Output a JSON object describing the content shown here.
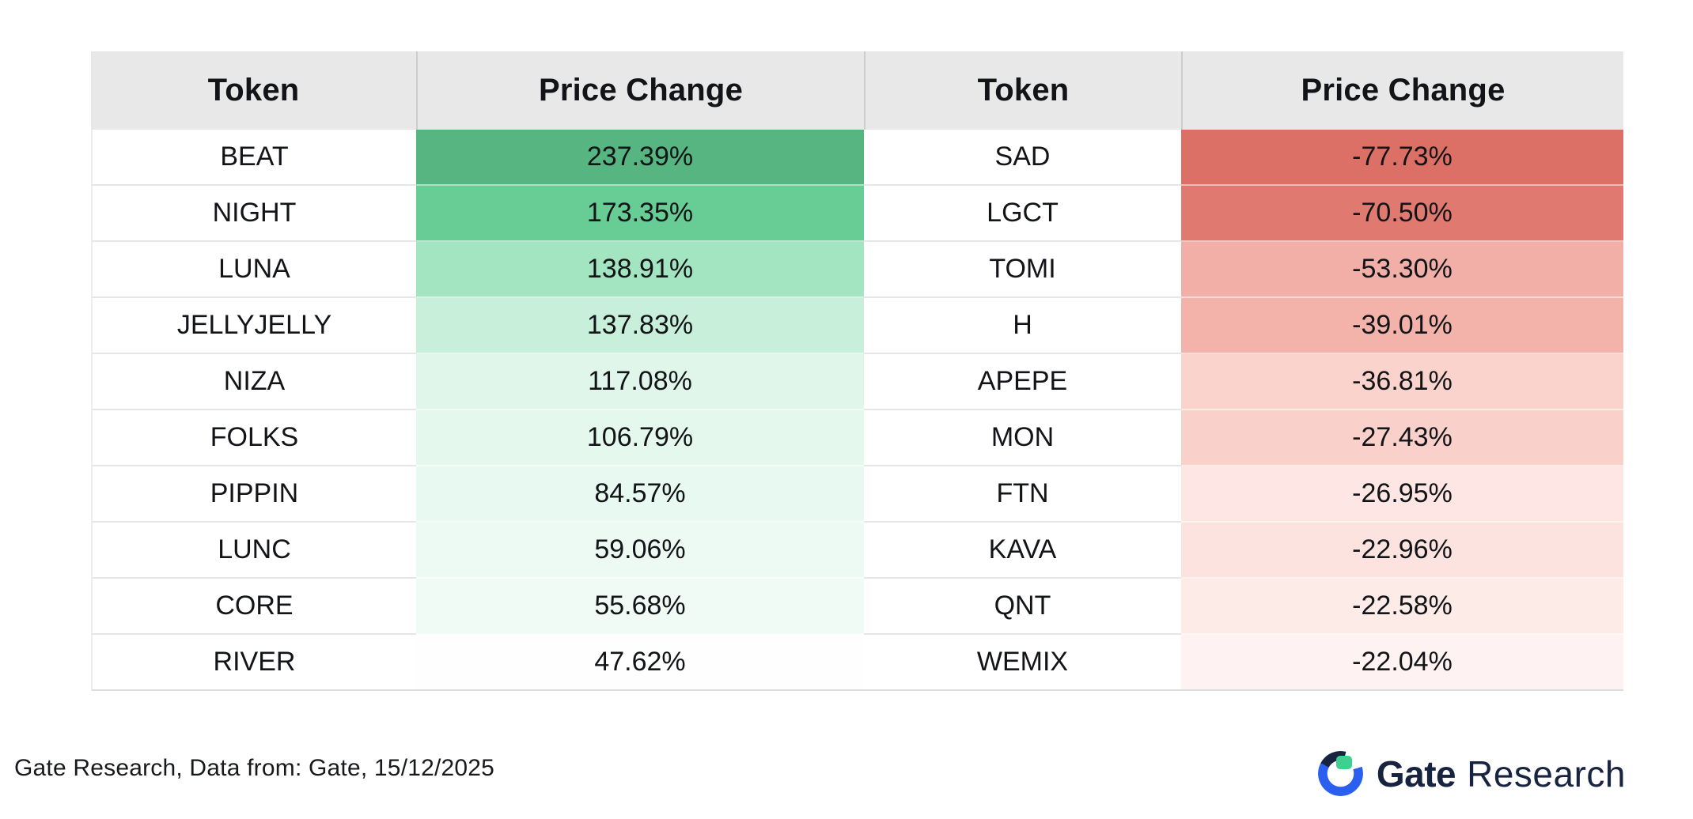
{
  "table": {
    "header_bg": "#e8e8e8",
    "headers": [
      {
        "label": "Token"
      },
      {
        "label": "Price Change"
      },
      {
        "label": "Token"
      },
      {
        "label": "Price Change"
      }
    ],
    "rows": [
      {
        "gainer_token": "BEAT",
        "gainer_change": "237.39%",
        "gainer_bg": "#56b581",
        "loser_token": "SAD",
        "loser_change": "-77.73%",
        "loser_bg": "#dd7066"
      },
      {
        "gainer_token": "NIGHT",
        "gainer_change": "173.35%",
        "gainer_bg": "#67cd95",
        "loser_token": "LGCT",
        "loser_change": "-70.50%",
        "loser_bg": "#e0796f"
      },
      {
        "gainer_token": "LUNA",
        "gainer_change": "138.91%",
        "gainer_bg": "#a3e4c1",
        "loser_token": "TOMI",
        "loser_change": "-53.30%",
        "loser_bg": "#f2afa7"
      },
      {
        "gainer_token": "JELLYJELLY",
        "gainer_change": "137.83%",
        "gainer_bg": "#c8efda",
        "loser_token": "H",
        "loser_change": "-39.01%",
        "loser_bg": "#f3b3ab"
      },
      {
        "gainer_token": "NIZA",
        "gainer_change": "117.08%",
        "gainer_bg": "#e1f6ea",
        "loser_token": "APEPE",
        "loser_change": "-36.81%",
        "loser_bg": "#fad3cd"
      },
      {
        "gainer_token": "FOLKS",
        "gainer_change": "106.79%",
        "gainer_bg": "#e5f8ed",
        "loser_token": "MON",
        "loser_change": "-27.43%",
        "loser_bg": "#f9d0ca"
      },
      {
        "gainer_token": "PIPPIN",
        "gainer_change": "84.57%",
        "gainer_bg": "#e7f9f0",
        "loser_token": "FTN",
        "loser_change": "-26.95%",
        "loser_bg": "#fde6e3"
      },
      {
        "gainer_token": "LUNC",
        "gainer_change": "59.06%",
        "gainer_bg": "#edfaf3",
        "loser_token": "KAVA",
        "loser_change": "-22.96%",
        "loser_bg": "#fce3df"
      },
      {
        "gainer_token": "CORE",
        "gainer_change": "55.68%",
        "gainer_bg": "#f1fbf6",
        "loser_token": "QNT",
        "loser_change": "-22.58%",
        "loser_bg": "#fdebe8"
      },
      {
        "gainer_token": "RIVER",
        "gainer_change": "47.62%",
        "gainer_bg": "#fdfefd",
        "loser_token": "WEMIX",
        "loser_change": "-22.04%",
        "loser_bg": "#fef3f2"
      }
    ]
  },
  "footer": {
    "source_text": "Gate Research, Data from: Gate, 15/12/2025",
    "logo": {
      "brand": "Gate",
      "suffix": "Research",
      "blue": "#2b5ff0",
      "navy": "#18243f",
      "green": "#3fcf8e"
    }
  },
  "chart_data": {
    "type": "table",
    "columns": [
      "Token",
      "Price Change",
      "Token",
      "Price Change"
    ],
    "gainers": [
      {
        "token": "BEAT",
        "change_pct": 237.39
      },
      {
        "token": "NIGHT",
        "change_pct": 173.35
      },
      {
        "token": "LUNA",
        "change_pct": 138.91
      },
      {
        "token": "JELLYJELLY",
        "change_pct": 137.83
      },
      {
        "token": "NIZA",
        "change_pct": 117.08
      },
      {
        "token": "FOLKS",
        "change_pct": 106.79
      },
      {
        "token": "PIPPIN",
        "change_pct": 84.57
      },
      {
        "token": "LUNC",
        "change_pct": 59.06
      },
      {
        "token": "CORE",
        "change_pct": 55.68
      },
      {
        "token": "RIVER",
        "change_pct": 47.62
      }
    ],
    "losers": [
      {
        "token": "SAD",
        "change_pct": -77.73
      },
      {
        "token": "LGCT",
        "change_pct": -70.5
      },
      {
        "token": "TOMI",
        "change_pct": -53.3
      },
      {
        "token": "H",
        "change_pct": -39.01
      },
      {
        "token": "APEPE",
        "change_pct": -36.81
      },
      {
        "token": "MON",
        "change_pct": -27.43
      },
      {
        "token": "FTN",
        "change_pct": -26.95
      },
      {
        "token": "KAVA",
        "change_pct": -22.96
      },
      {
        "token": "QNT",
        "change_pct": -22.58
      },
      {
        "token": "WEMIX",
        "change_pct": -22.04
      }
    ],
    "legend_position": "none",
    "grid": true,
    "color_scale": {
      "positive": "green gradient by rank",
      "negative": "red gradient by rank"
    }
  }
}
